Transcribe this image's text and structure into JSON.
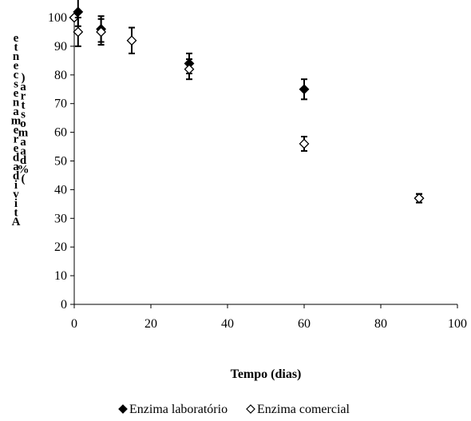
{
  "chart_data": {
    "type": "scatter",
    "xlabel": "Tempo (dias)",
    "ylabel_lines": [
      "Atividade remanescente",
      "(% da amostra)"
    ],
    "xlim": [
      0,
      100
    ],
    "ylim": [
      0,
      100
    ],
    "x_ticks": [
      0,
      20,
      40,
      60,
      80,
      100
    ],
    "y_ticks": [
      0,
      10,
      20,
      30,
      40,
      50,
      60,
      70,
      80,
      90,
      100
    ],
    "grid": false,
    "legend_position": "bottom",
    "series": [
      {
        "name": "Enzima laboratório",
        "marker": "filled-diamond",
        "color": "#000000",
        "x": [
          0,
          1,
          7,
          30,
          60,
          90
        ],
        "y": [
          100,
          102,
          96,
          84,
          75,
          37
        ],
        "error": [
          0,
          5,
          4.5,
          3.5,
          3.5,
          1.5
        ]
      },
      {
        "name": "Enzima comercial",
        "marker": "open-diamond",
        "color": "#000000",
        "x": [
          0,
          1,
          7,
          15,
          30,
          60,
          90
        ],
        "y": [
          100,
          95,
          95,
          92,
          82,
          56,
          37
        ],
        "error": [
          0,
          5,
          4.5,
          4.5,
          3.5,
          2.5,
          1.5
        ]
      }
    ]
  }
}
